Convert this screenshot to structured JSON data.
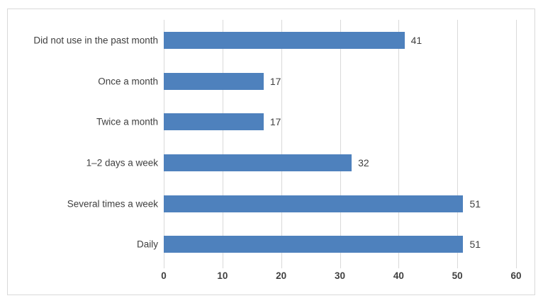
{
  "chart_data": {
    "type": "bar",
    "orientation": "horizontal",
    "title": "",
    "xlabel": "",
    "ylabel": "",
    "categories": [
      "Did not use in the past month",
      "Once a month",
      "Twice a month",
      "1–2 days a week",
      "Several times a week",
      "Daily"
    ],
    "values": [
      41,
      17,
      17,
      32,
      51,
      51
    ],
    "data_labels": [
      "41",
      "17",
      "17",
      "32",
      "51",
      "51"
    ],
    "xlim": [
      0,
      60
    ],
    "xticks": [
      "0",
      "10",
      "20",
      "30",
      "40",
      "50",
      "60"
    ],
    "grid": "vertical-only",
    "legend_position": "none",
    "colors": {
      "bar": "#4e81bd",
      "gridline": "#d9d9d9",
      "frame_border": "#d9d9d9",
      "text": "#404040",
      "background": "#ffffff"
    }
  }
}
